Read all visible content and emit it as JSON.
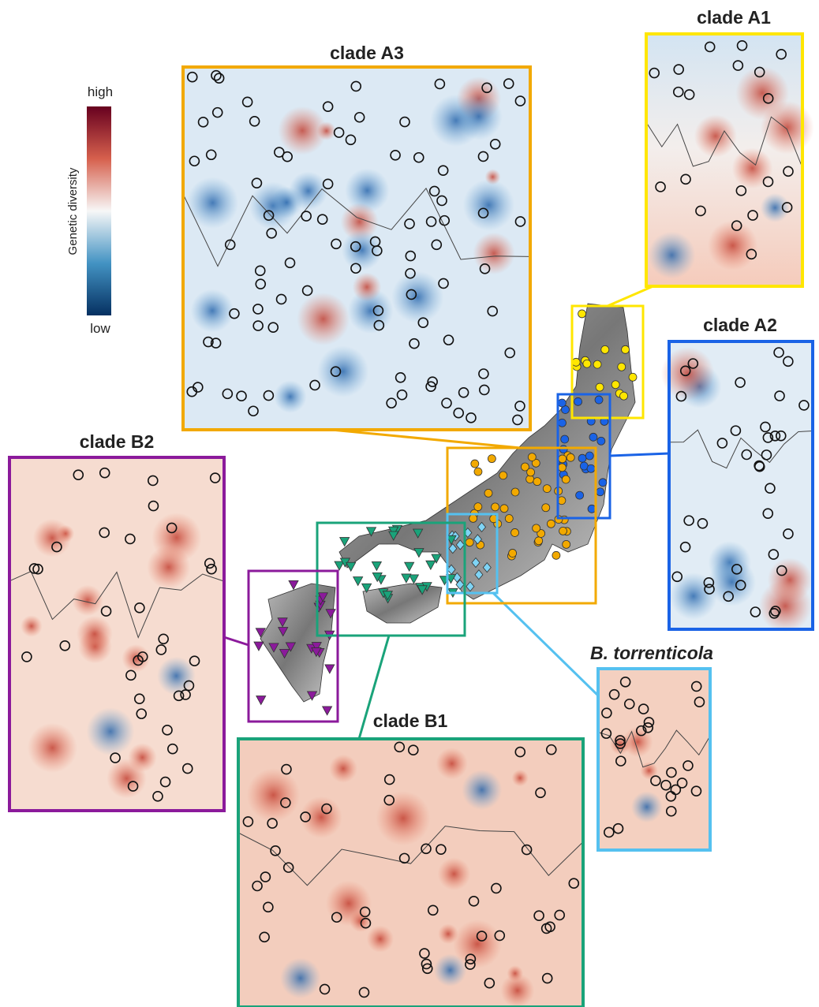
{
  "legend": {
    "title": "Genetic diversity",
    "high": "high",
    "low": "low"
  },
  "panels": [
    {
      "title": "clade A3"
    },
    {
      "title": "clade A1"
    },
    {
      "title": "clade A2"
    },
    {
      "title": "clade B2"
    },
    {
      "title": "clade B1"
    },
    {
      "title": "B. torrenticola"
    }
  ]
}
